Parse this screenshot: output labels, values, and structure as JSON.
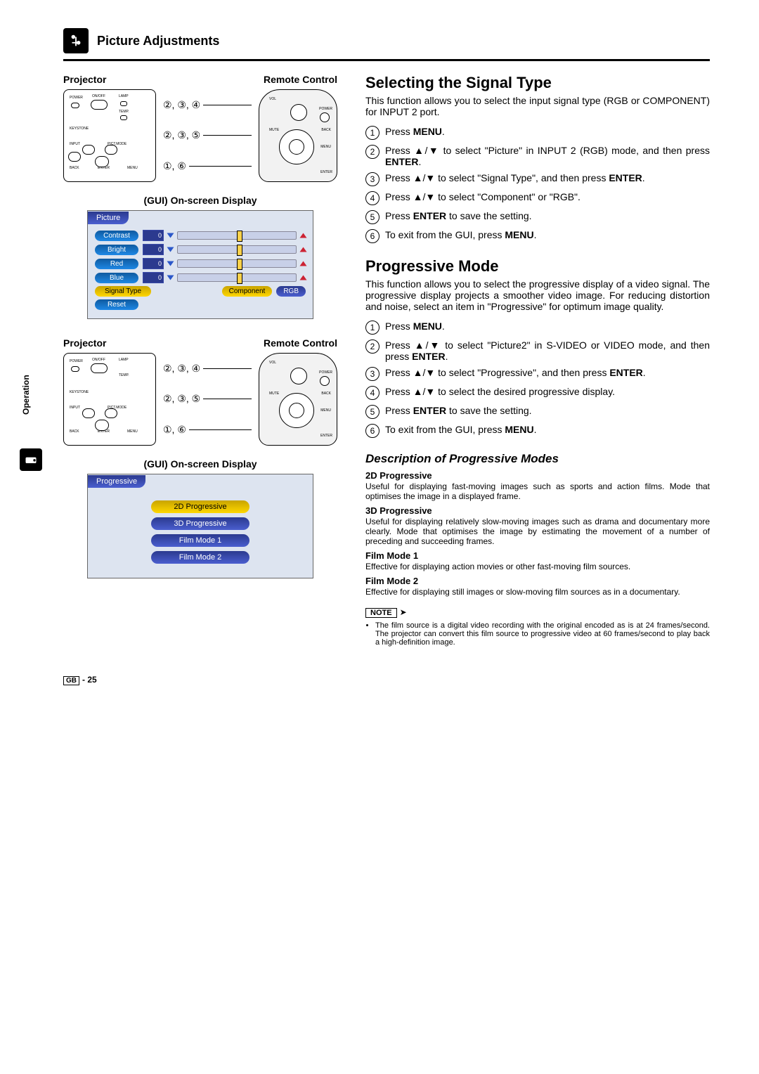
{
  "header": {
    "title": "Picture Adjustments"
  },
  "side_tab": "Operation",
  "left": {
    "block1": {
      "label_projector": "Projector",
      "label_remote": "Remote Control",
      "gui_label": "(GUI) On-screen Display",
      "callouts": {
        "a": "②, ③, ④",
        "b": "②, ③, ⑤",
        "c": "①, ⑥"
      },
      "gui": {
        "tab": "Picture",
        "rows": [
          {
            "label": "Contrast",
            "val": "0",
            "style": "cyan"
          },
          {
            "label": "Bright",
            "val": "0",
            "style": "cyan"
          },
          {
            "label": "Red",
            "val": "0",
            "style": "cyan"
          },
          {
            "label": "Blue",
            "val": "0",
            "style": "cyan"
          }
        ],
        "signal_row": {
          "label": "Signal Type",
          "opt1": "Component",
          "opt2": "RGB"
        },
        "reset": "Reset"
      }
    },
    "block2": {
      "label_projector": "Projector",
      "label_remote": "Remote Control",
      "gui_label": "(GUI) On-screen Display",
      "callouts": {
        "a": "②, ③, ④",
        "b": "②, ③, ⑤",
        "c": "①, ⑥"
      },
      "gui": {
        "tab": "Progressive",
        "options": [
          {
            "label": "2D Progressive",
            "style": "yellow"
          },
          {
            "label": "3D Progressive",
            "style": "blue"
          },
          {
            "label": "Film Mode 1",
            "style": "blue"
          },
          {
            "label": "Film Mode 2",
            "style": "blue"
          }
        ]
      }
    }
  },
  "right": {
    "sect1": {
      "title": "Selecting the Signal Type",
      "intro": "This function allows you to select the input signal type (RGB or COMPONENT) for INPUT 2 port.",
      "steps": [
        "Press <b>MENU</b>.",
        "Press <span class='ud-icon'></span>/<span class='ud-icon'></span> to select \"Picture\" in INPUT 2 (RGB) mode, and then press <b>ENTER</b>.",
        "Press <span class='ud-icon'></span>/<span class='ud-icon'></span> to select \"Signal Type\", and then press <b>ENTER</b>.",
        "Press <span class='ud-icon'></span>/<span class='ud-icon'></span> to select \"Component\" or \"RGB\".",
        "Press <b>ENTER</b> to save the setting.",
        "To exit from the GUI, press <b>MENU</b>."
      ]
    },
    "sect2": {
      "title": "Progressive Mode",
      "intro": "This function allows you to select the progressive display of a video signal. The progressive display projects a smoother video image. For reducing distortion and noise, select an item in \"Progressive\" for optimum image quality.",
      "steps": [
        "Press <b>MENU</b>.",
        "Press <span class='ud-icon'></span>/<span class='ud-icon'></span> to select \"Picture2\" in S-VIDEO or VIDEO mode, and then press <b>ENTER</b>.",
        "Press <span class='ud-icon'></span>/<span class='ud-icon'></span> to select \"Progressive\", and then press <b>ENTER</b>.",
        "Press <span class='ud-icon'></span>/<span class='ud-icon'></span> to select the desired progressive display.",
        "Press <b>ENTER</b> to save the setting.",
        "To exit from the GUI, press <b>MENU</b>."
      ],
      "sub_title": "Description of Progressive Modes",
      "modes": [
        {
          "h": "2D Progressive",
          "p": "Useful for displaying fast-moving images such as sports and action films. Mode that optimises the image in a displayed frame."
        },
        {
          "h": "3D Progressive",
          "p": "Useful for displaying relatively slow-moving images such as drama and documentary more clearly. Mode that optimises the image by estimating the movement of a number of preceding and succeeding frames."
        },
        {
          "h": "Film Mode 1",
          "p": "Effective for displaying action movies or other fast-moving film sources."
        },
        {
          "h": "Film Mode 2",
          "p": "Effective for displaying still images or slow-moving film sources as in a documentary."
        }
      ],
      "note_label": "NOTE",
      "note_text": "The film source is a digital video recording with the original encoded as is at 24 frames/second. The projector can convert this film source to progressive video at 60 frames/second to play back a high-definition image."
    }
  },
  "footer": {
    "gb": "GB",
    "page": "- 25"
  }
}
